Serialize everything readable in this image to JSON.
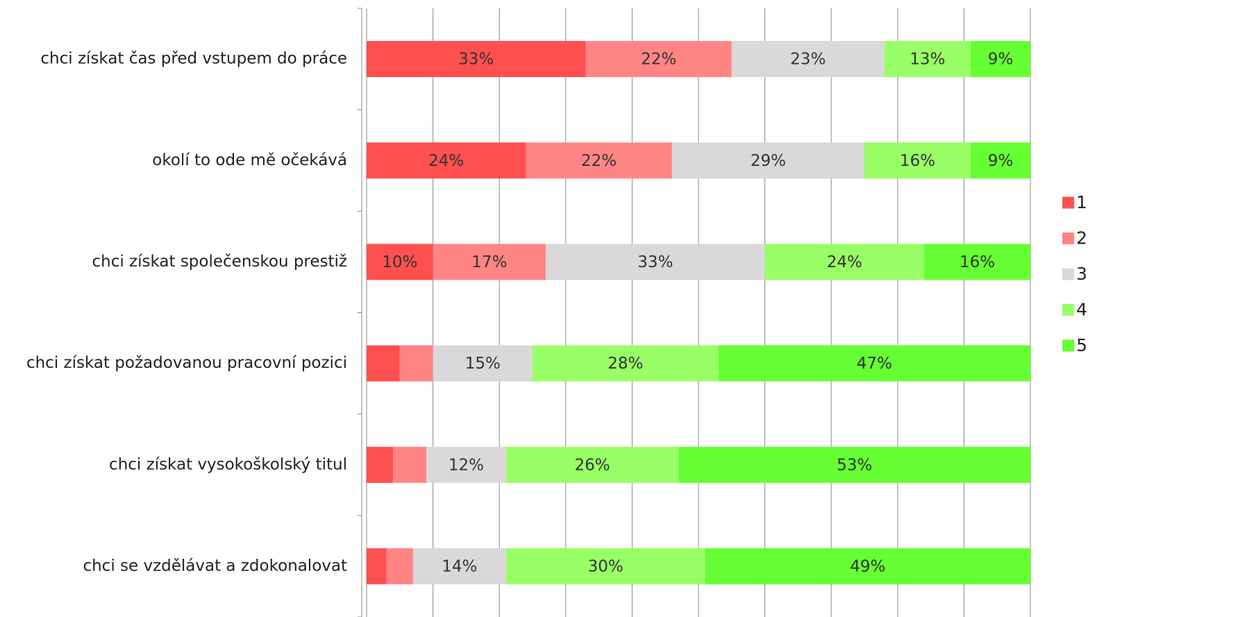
{
  "chart_data": {
    "type": "stacked-bar-horizontal",
    "categories": [
      "chci získat čas před vstupem do práce",
      "okolí to ode mě očekává",
      "chci získat společenskou prestiž",
      "chci získat požadovanou pracovní pozici",
      "chci získat vysokoškolský titul",
      "chci se vzdělávat a zdokonalovat"
    ],
    "series": [
      {
        "name": "1",
        "color": "#ff5050",
        "values": [
          33,
          24,
          10,
          5,
          4,
          3
        ],
        "value_labels": [
          "33%",
          "24%",
          "10%",
          null,
          null,
          null
        ]
      },
      {
        "name": "2",
        "color": "#ff8585",
        "values": [
          22,
          22,
          17,
          5,
          5,
          4
        ],
        "value_labels": [
          "22%",
          "22%",
          "17%",
          null,
          null,
          null
        ]
      },
      {
        "name": "3",
        "color": "#d9d9d9",
        "values": [
          23,
          29,
          33,
          15,
          12,
          14
        ],
        "value_labels": [
          "23%",
          "29%",
          "33%",
          "15%",
          "12%",
          "14%"
        ]
      },
      {
        "name": "4",
        "color": "#99ff66",
        "values": [
          13,
          16,
          24,
          28,
          26,
          30
        ],
        "value_labels": [
          "13%",
          "16%",
          "24%",
          "28%",
          "26%",
          "30%"
        ]
      },
      {
        "name": "5",
        "color": "#66ff33",
        "values": [
          9,
          9,
          16,
          47,
          53,
          49
        ],
        "value_labels": [
          "9%",
          "9%",
          "16%",
          "47%",
          "53%",
          "49%"
        ]
      }
    ],
    "xlim": [
      0,
      100
    ],
    "xticks": [
      0,
      10,
      20,
      30,
      40,
      50,
      60,
      70,
      80,
      90,
      100
    ],
    "grid": true,
    "legend": "right"
  }
}
